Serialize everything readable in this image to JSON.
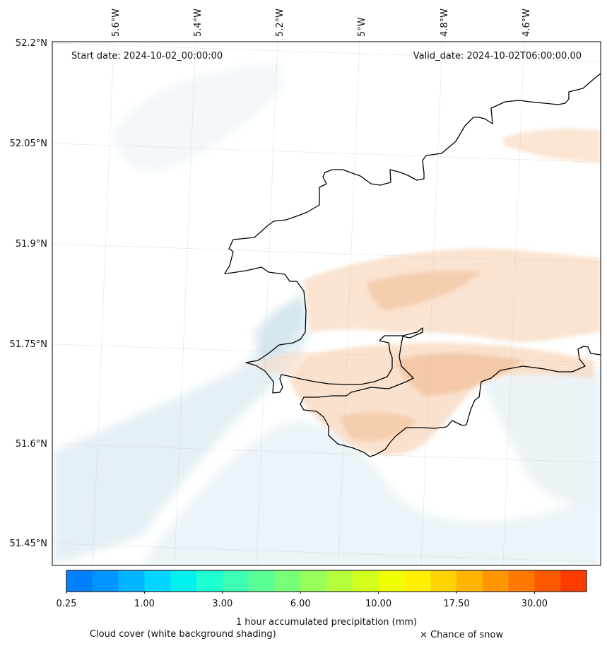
{
  "map": {
    "start_date_label": "Start date: 2024-10-02_00:00:00",
    "valid_date_label": "Valid_date: 2024-10-02T06:00:00.00",
    "region": "Pembrokeshire coast, Wales",
    "lon_labels": [
      "5.6°W",
      "5.4°W",
      "5.2°W",
      "5°W",
      "4.8°W",
      "4.6°W"
    ],
    "lat_labels": [
      "52.2°N",
      "52.05°N",
      "51.9°N",
      "51.75°N",
      "51.6°N",
      "51.45°N"
    ],
    "coastline_color": "#000000",
    "gridline_color": "#c8c8c8",
    "cloud_tint_color": "#dcebf2",
    "precip_tint_color": "#f7d3b5"
  },
  "colorbar": {
    "colors": [
      "#0080ff",
      "#0095ff",
      "#00b5ff",
      "#00d5ff",
      "#00f0f0",
      "#1effd2",
      "#3cffb4",
      "#5aff96",
      "#78ff78",
      "#96ff5a",
      "#b4ff3c",
      "#d2ff1e",
      "#f0ff00",
      "#fff000",
      "#ffd200",
      "#ffb400",
      "#ff9600",
      "#ff7800",
      "#ff5a00",
      "#ff3c00"
    ],
    "tick_labels": [
      "0.25",
      "1.00",
      "3.00",
      "6.00",
      "10.00",
      "17.50",
      "30.00"
    ],
    "label": "1 hour accumulated precipitation (mm)"
  },
  "footer": {
    "cloud_label": "Cloud cover (white background shading)",
    "snow_label": "× Chance of snow"
  }
}
